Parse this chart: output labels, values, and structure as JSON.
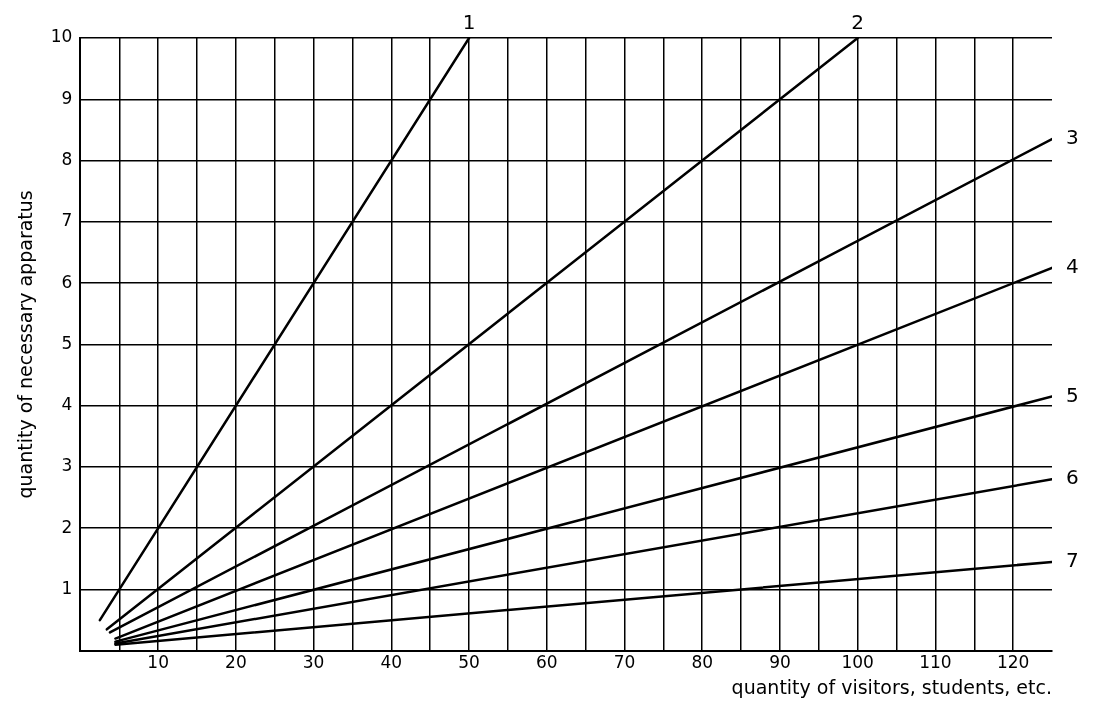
{
  "chart_data": {
    "type": "line",
    "xlabel": "quantity of visitors, students, etc.",
    "ylabel": "quantity of necessary apparatus",
    "xlim": [
      0,
      125
    ],
    "ylim": [
      0,
      10
    ],
    "xticks": [
      {
        "value": 5,
        "label": null
      },
      10,
      {
        "value": 15,
        "label": null
      },
      20,
      {
        "value": 25,
        "label": null
      },
      30,
      {
        "value": 35,
        "label": null
      },
      40,
      {
        "value": 45,
        "label": null
      },
      50,
      {
        "value": 55,
        "label": null
      },
      60,
      {
        "value": 65,
        "label": null
      },
      70,
      {
        "value": 75,
        "label": null
      },
      80,
      {
        "value": 85,
        "label": null
      },
      90,
      {
        "value": 95,
        "label": null
      },
      100,
      {
        "value": 105,
        "label": null
      },
      110,
      {
        "value": 115,
        "label": null
      },
      120
    ],
    "yticks": [
      {
        "value": 0,
        "label": null
      },
      1,
      2,
      3,
      4,
      5,
      6,
      7,
      8,
      9,
      10
    ],
    "grid": true,
    "legend": false,
    "marker": "none",
    "line_style": "solid",
    "series": [
      {
        "name": "1",
        "color": "#000000",
        "x": [
          2.5,
          50
        ],
        "values": [
          0.5,
          10
        ]
      },
      {
        "name": "2",
        "color": "#000000",
        "x": [
          3.4,
          100
        ],
        "values": [
          0.35,
          10
        ]
      },
      {
        "name": "3",
        "color": "#000000",
        "x": [
          3.8,
          125
        ],
        "values": [
          0.3,
          8.35
        ]
      },
      {
        "name": "4",
        "color": "#000000",
        "x": [
          4.5,
          125
        ],
        "values": [
          0.2,
          6.25
        ]
      },
      {
        "name": "5",
        "color": "#000000",
        "x": [
          4.5,
          125
        ],
        "values": [
          0.15,
          4.15
        ]
      },
      {
        "name": "6",
        "color": "#000000",
        "x": [
          4.5,
          125
        ],
        "values": [
          0.12,
          2.8
        ]
      },
      {
        "name": "7",
        "color": "#000000",
        "x": [
          4.5,
          125
        ],
        "values": [
          0.1,
          1.45
        ]
      }
    ]
  }
}
